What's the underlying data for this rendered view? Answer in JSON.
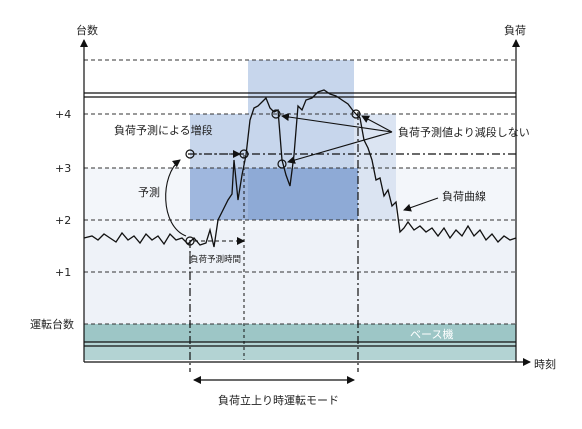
{
  "axes": {
    "y_left_title": "台数",
    "y_right_title": "負荷",
    "x_title": "時刻",
    "y_ticks": [
      "+4",
      "+3",
      "+2",
      "+1",
      "運転台数"
    ]
  },
  "labels": {
    "increase_by_forecast": "負荷予測による増段",
    "forecast": "予測",
    "forecast_time": "負荷予測時間",
    "no_decrease": "負荷予測値より減段しない",
    "load_curve": "負荷曲線",
    "base_unit": "ベース機",
    "rising_mode": "負荷立上り時運転モード"
  },
  "colors": {
    "light_fill": "#eef2f8",
    "mid_fill": "#b9cbe6",
    "dark_fill": "#8eaad6",
    "base_fill": "#9dc6c6",
    "line": "#111111"
  }
}
